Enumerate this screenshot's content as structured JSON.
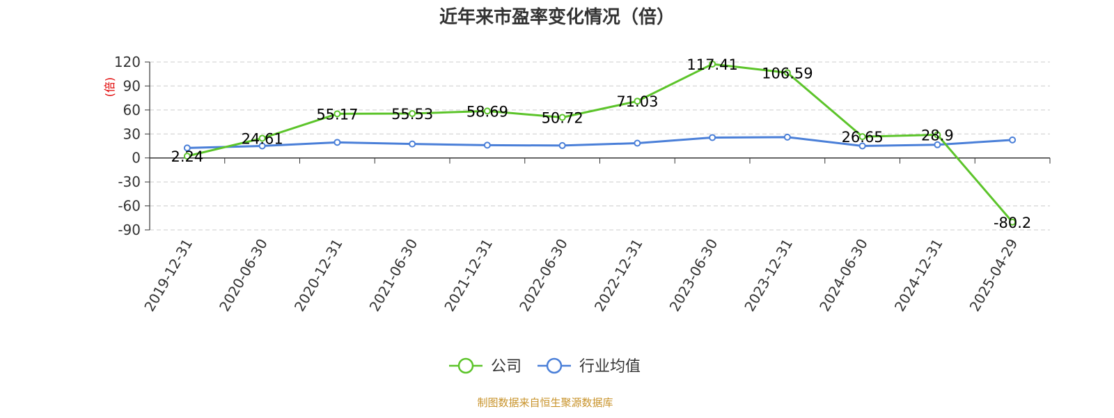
{
  "chart_data": {
    "type": "line",
    "title": "近年来市盈率变化情况（倍）",
    "ylabel": "(倍)",
    "ylim": [
      -90,
      120
    ],
    "yticks": [
      120,
      90,
      60,
      30,
      0,
      -30,
      -60,
      -90
    ],
    "grid": true,
    "legend_position": "bottom",
    "categories": [
      "2019-12-31",
      "2020-06-30",
      "2020-12-31",
      "2021-06-30",
      "2021-12-31",
      "2022-06-30",
      "2022-12-31",
      "2023-06-30",
      "2023-12-31",
      "2024-06-30",
      "2024-12-31",
      "2025-04-29"
    ],
    "series": [
      {
        "name": "公司",
        "color": "#5cc42a",
        "values": [
          2.24,
          24.61,
          55.17,
          55.53,
          58.69,
          50.72,
          71.03,
          117.41,
          106.59,
          26.65,
          28.9,
          -80.2
        ],
        "labels": [
          "2.24",
          "24.61",
          "55.17",
          "55.53",
          "58.69",
          "50.72",
          "71.03",
          "117.41",
          "106.59",
          "26.65",
          "28.9",
          "-80.2"
        ]
      },
      {
        "name": "行业均值",
        "color": "#4a7fd8",
        "values": [
          12.5,
          15.0,
          19.5,
          17.5,
          16.0,
          15.5,
          18.5,
          25.5,
          26.0,
          15.0,
          16.5,
          22.5
        ]
      }
    ],
    "source": "制图数据来自恒生聚源数据库"
  }
}
